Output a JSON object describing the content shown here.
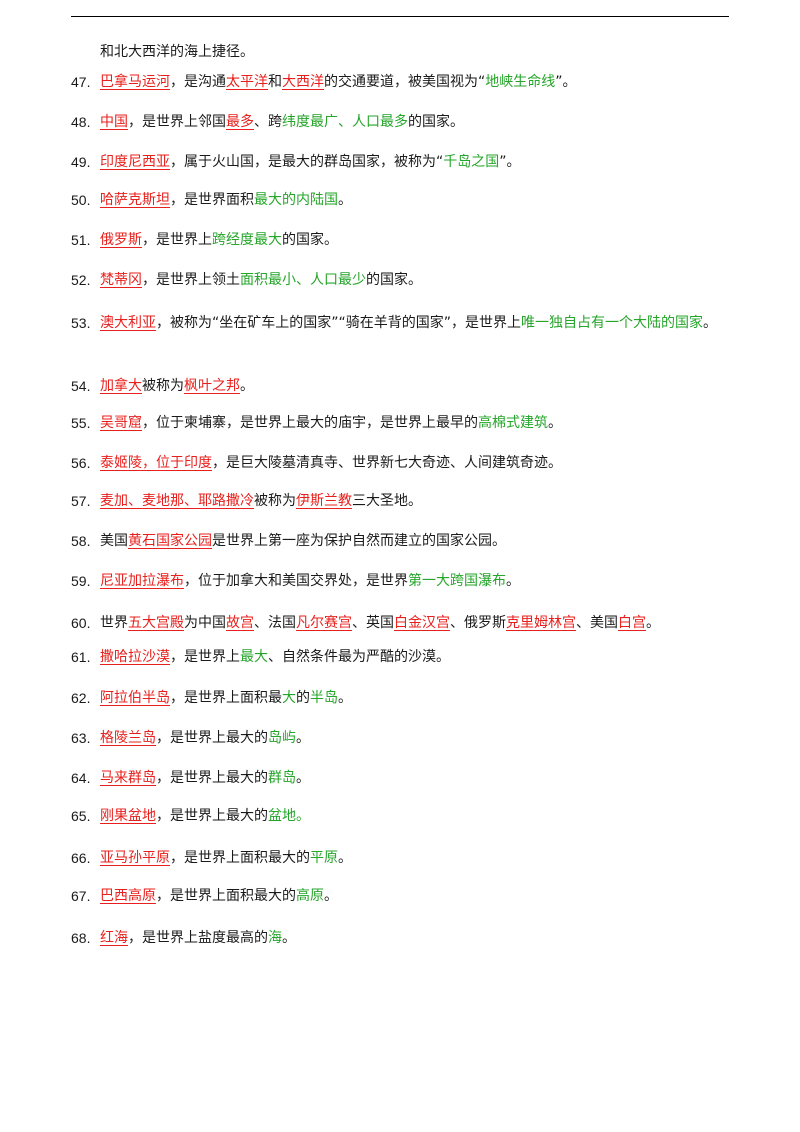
{
  "continuation": [
    {
      "t": "和北大西洋的海上捷径。",
      "c": "k"
    }
  ],
  "items": [
    {
      "num": "47.",
      "segs": [
        {
          "t": "巴拿马运河",
          "c": "r"
        },
        {
          "t": "，是沟通",
          "c": "k"
        },
        {
          "t": "太平洋",
          "c": "r"
        },
        {
          "t": "和",
          "c": "k"
        },
        {
          "t": "大西洋",
          "c": "r"
        },
        {
          "t": "的交通要道，被美国视为“",
          "c": "k"
        },
        {
          "t": "地峡生命线",
          "c": "g"
        },
        {
          "t": "”。",
          "c": "k"
        }
      ]
    },
    {
      "num": "48.",
      "segs": [
        {
          "t": "中国",
          "c": "r"
        },
        {
          "t": "，是世界上邻国",
          "c": "k"
        },
        {
          "t": "最多",
          "c": "r"
        },
        {
          "t": "、跨",
          "c": "k"
        },
        {
          "t": "纬度最广、人口最多",
          "c": "g"
        },
        {
          "t": "的国家。",
          "c": "k"
        }
      ]
    },
    {
      "num": "49.",
      "segs": [
        {
          "t": "印度尼西亚",
          "c": "r"
        },
        {
          "t": "，属于火山国，是最大的群岛国家，被称为“",
          "c": "k"
        },
        {
          "t": "千岛之国",
          "c": "g"
        },
        {
          "t": "”。",
          "c": "k"
        }
      ]
    },
    {
      "num": "50.",
      "segs": [
        {
          "t": "哈萨克斯坦",
          "c": "r"
        },
        {
          "t": "，是世界面积",
          "c": "k"
        },
        {
          "t": "最大的内陆国",
          "c": "g"
        },
        {
          "t": "。",
          "c": "k"
        }
      ]
    },
    {
      "num": "51.",
      "segs": [
        {
          "t": "俄罗斯",
          "c": "r"
        },
        {
          "t": "，是世界上",
          "c": "k"
        },
        {
          "t": "跨经度最大",
          "c": "g"
        },
        {
          "t": "的国家。",
          "c": "k"
        }
      ]
    },
    {
      "num": "52.",
      "segs": [
        {
          "t": "梵蒂冈",
          "c": "r"
        },
        {
          "t": "，是世界上领土",
          "c": "k"
        },
        {
          "t": "面积最小、人口最少",
          "c": "g"
        },
        {
          "t": "的国家。",
          "c": "k"
        }
      ]
    },
    {
      "num": "53.",
      "wrap": true,
      "segs": [
        {
          "t": "澳大利亚",
          "c": "r"
        },
        {
          "t": "，被称为“坐在矿车上的国家”“骑在羊背的国家”，是世界上",
          "c": "k"
        },
        {
          "t": "唯一独自占有一个大陆的国家",
          "c": "g"
        },
        {
          "t": "。",
          "c": "k"
        }
      ]
    },
    {
      "num": "54.",
      "segs": [
        {
          "t": "加拿大",
          "c": "r"
        },
        {
          "t": "被称为",
          "c": "k"
        },
        {
          "t": "枫叶之邦",
          "c": "r"
        },
        {
          "t": "。",
          "c": "k"
        }
      ]
    },
    {
      "num": "55.",
      "segs": [
        {
          "t": "吴哥窟",
          "c": "r"
        },
        {
          "t": "，位于柬埔寨，是世界上最大的庙宇，是世界上最早的",
          "c": "k"
        },
        {
          "t": "高棉式建筑",
          "c": "g"
        },
        {
          "t": "。",
          "c": "k"
        }
      ]
    },
    {
      "num": "56.",
      "segs": [
        {
          "t": "泰姬陵，位于印度",
          "c": "r"
        },
        {
          "t": "，是巨大陵墓清真寺、世界新七大奇迹、人间建筑奇迹。",
          "c": "k"
        }
      ]
    },
    {
      "num": "57.",
      "segs": [
        {
          "t": "麦加、麦地那、耶路撒冷",
          "c": "r"
        },
        {
          "t": "被称为",
          "c": "k"
        },
        {
          "t": "伊斯兰教",
          "c": "r"
        },
        {
          "t": "三大圣地。",
          "c": "k"
        }
      ]
    },
    {
      "num": "58.",
      "segs": [
        {
          "t": "美国",
          "c": "k"
        },
        {
          "t": "黄石国家公园",
          "c": "r"
        },
        {
          "t": "是世界上第一座为保护自然而建立的国家公园。",
          "c": "k"
        }
      ]
    },
    {
      "num": "59.",
      "segs": [
        {
          "t": "尼亚加拉瀑布",
          "c": "r"
        },
        {
          "t": "，位于加拿大和美国交界处，是世界",
          "c": "k"
        },
        {
          "t": "第一大跨国瀑布",
          "c": "g"
        },
        {
          "t": "。",
          "c": "k"
        }
      ]
    },
    {
      "num": "60.",
      "segs": [
        {
          "t": "世界",
          "c": "k"
        },
        {
          "t": "五大宫殿",
          "c": "r"
        },
        {
          "t": "为中国",
          "c": "k"
        },
        {
          "t": "故宫",
          "c": "r"
        },
        {
          "t": "、法国",
          "c": "k"
        },
        {
          "t": "凡尔赛宫",
          "c": "r"
        },
        {
          "t": "、英国",
          "c": "k"
        },
        {
          "t": "白金汉宫",
          "c": "r"
        },
        {
          "t": "、俄罗斯",
          "c": "k"
        },
        {
          "t": "克里姆林宫",
          "c": "r"
        },
        {
          "t": "、美国",
          "c": "k"
        },
        {
          "t": "白宫",
          "c": "r"
        },
        {
          "t": "。",
          "c": "k"
        }
      ]
    },
    {
      "num": "61.",
      "segs": [
        {
          "t": "撒哈拉沙漠",
          "c": "r"
        },
        {
          "t": "，是世界上",
          "c": "k"
        },
        {
          "t": "最大",
          "c": "g"
        },
        {
          "t": "、自然条件最为严酷的沙漠。",
          "c": "k"
        }
      ]
    },
    {
      "num": "62.",
      "segs": [
        {
          "t": "阿拉伯半岛",
          "c": "r"
        },
        {
          "t": "，是世界上面积最",
          "c": "k"
        },
        {
          "t": "大",
          "c": "g"
        },
        {
          "t": "的",
          "c": "k"
        },
        {
          "t": "半岛",
          "c": "g"
        },
        {
          "t": "。",
          "c": "k"
        }
      ]
    },
    {
      "num": "63.",
      "segs": [
        {
          "t": "格陵兰岛",
          "c": "r"
        },
        {
          "t": "，是世界上最大的",
          "c": "k"
        },
        {
          "t": "岛屿",
          "c": "g"
        },
        {
          "t": "。",
          "c": "k"
        }
      ]
    },
    {
      "num": "64.",
      "segs": [
        {
          "t": "马来群岛",
          "c": "r"
        },
        {
          "t": "，是世界上最大的",
          "c": "k"
        },
        {
          "t": "群岛",
          "c": "g"
        },
        {
          "t": "。",
          "c": "k"
        }
      ]
    },
    {
      "num": "65.",
      "segs": [
        {
          "t": "刚果盆地",
          "c": "r"
        },
        {
          "t": "，是世界上最大的",
          "c": "k"
        },
        {
          "t": "盆地。",
          "c": "g"
        }
      ]
    },
    {
      "num": "66.",
      "segs": [
        {
          "t": "亚马孙平原",
          "c": "r"
        },
        {
          "t": "，是世界上面积最大的",
          "c": "k"
        },
        {
          "t": "平原",
          "c": "g"
        },
        {
          "t": "。",
          "c": "k"
        }
      ]
    },
    {
      "num": "67.",
      "segs": [
        {
          "t": "巴西高原",
          "c": "r"
        },
        {
          "t": "，是世界上面积最大的",
          "c": "k"
        },
        {
          "t": "高原",
          "c": "g"
        },
        {
          "t": "。",
          "c": "k"
        }
      ]
    },
    {
      "num": "68.",
      "segs": [
        {
          "t": "红海",
          "c": "r"
        },
        {
          "t": "，是世界上盐度最高的",
          "c": "k"
        },
        {
          "t": "海",
          "c": "g"
        },
        {
          "t": "。",
          "c": "k"
        }
      ]
    }
  ]
}
